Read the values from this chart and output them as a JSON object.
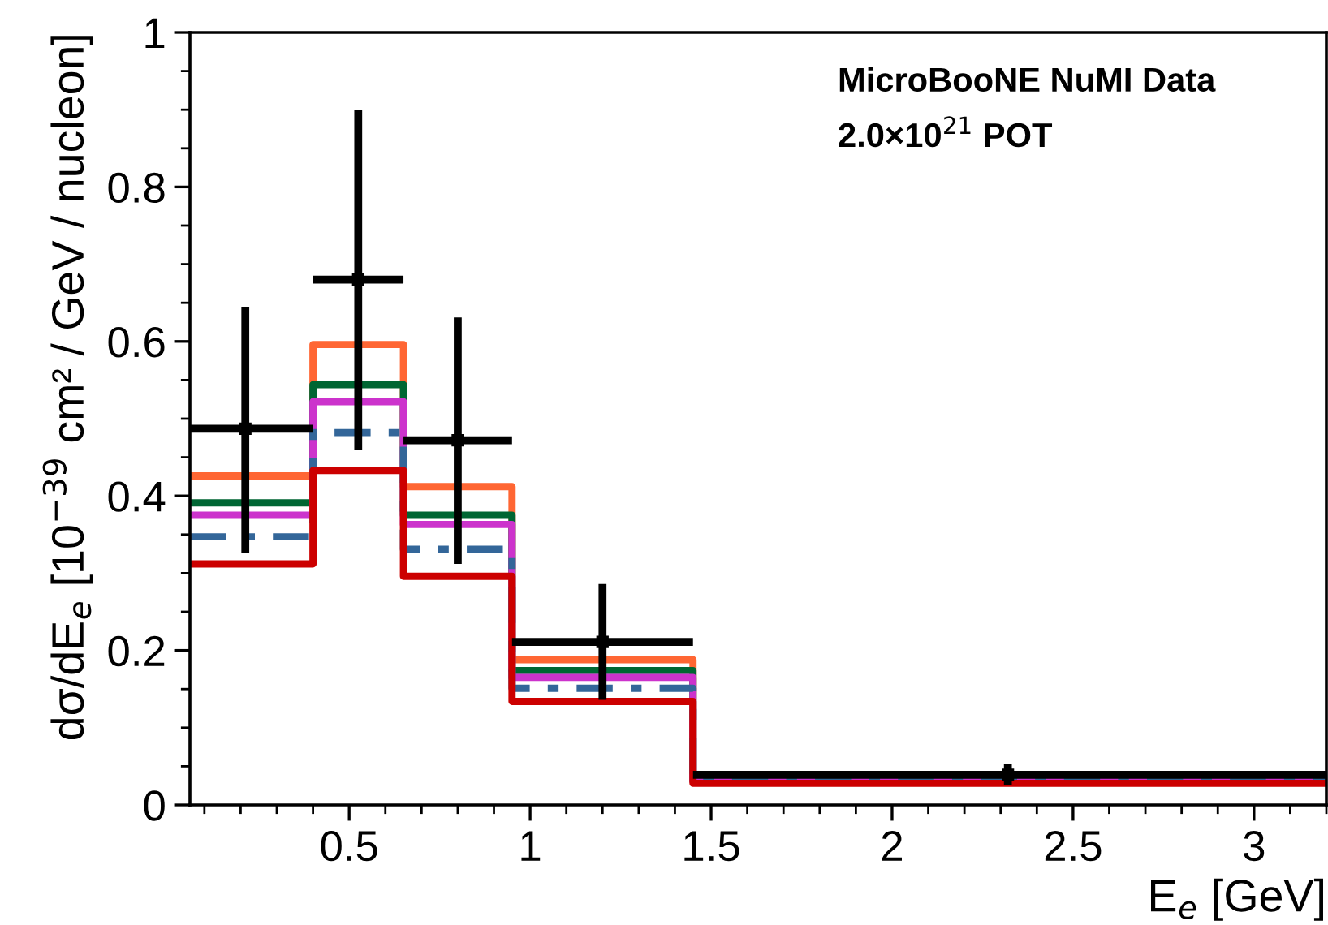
{
  "chart_data": {
    "type": "histogram",
    "xlabel": "E$_{e}$ [GeV]",
    "ylabel": "dσ/dE$_{e}$ [10$^{−39}$ cm² / GeV / nucleon]",
    "annotations": [
      "MicroBooNE NuMI Data",
      "2.0×10$^{21}$ POT"
    ],
    "bins": [
      0.06,
      0.4,
      0.65,
      0.95,
      1.45,
      3.2
    ],
    "xlim": [
      0.06,
      3.2
    ],
    "xticks": [
      0.5,
      1,
      1.5,
      2,
      2.5,
      3
    ],
    "ylim": [
      0,
      1.0
    ],
    "yticks": [
      0,
      0.2,
      0.4,
      0.6,
      0.8,
      1
    ],
    "grid": false,
    "legend": false,
    "series": [
      {
        "color": "#ff6633",
        "line_style": "solid",
        "values": [
          0.426,
          0.596,
          0.412,
          0.188,
          0.032
        ]
      },
      {
        "color": "#006633",
        "line_style": "solid",
        "values": [
          0.391,
          0.544,
          0.375,
          0.174,
          0.031
        ]
      },
      {
        "color": "#cc33cc",
        "line_style": "solid",
        "values": [
          0.375,
          0.522,
          0.363,
          0.165,
          0.031
        ]
      },
      {
        "color": "#336699",
        "line_style": "dashed",
        "values": [
          0.347,
          0.482,
          0.331,
          0.151,
          0.03
        ]
      },
      {
        "color": "#cc0000",
        "line_style": "solid",
        "values": [
          0.312,
          0.433,
          0.296,
          0.134,
          0.028
        ]
      },
      {
        "type": "scatter",
        "color": "#000000",
        "marker": "square",
        "x": [
          0.213,
          0.525,
          0.8,
          1.2,
          2.32
        ],
        "values": [
          0.487,
          0.68,
          0.472,
          0.211,
          0.039
        ],
        "errors": [
          [
            0.326,
            0.645
          ],
          [
            0.46,
            0.9
          ],
          [
            0.312,
            0.631
          ],
          [
            0.136,
            0.286
          ],
          [
            0.026,
            0.053
          ]
        ],
        "xerrors": [
          [
            0.06,
            0.4
          ],
          [
            0.4,
            0.65
          ],
          [
            0.65,
            0.95
          ],
          [
            0.95,
            1.45
          ],
          [
            1.45,
            3.2
          ]
        ]
      }
    ]
  }
}
